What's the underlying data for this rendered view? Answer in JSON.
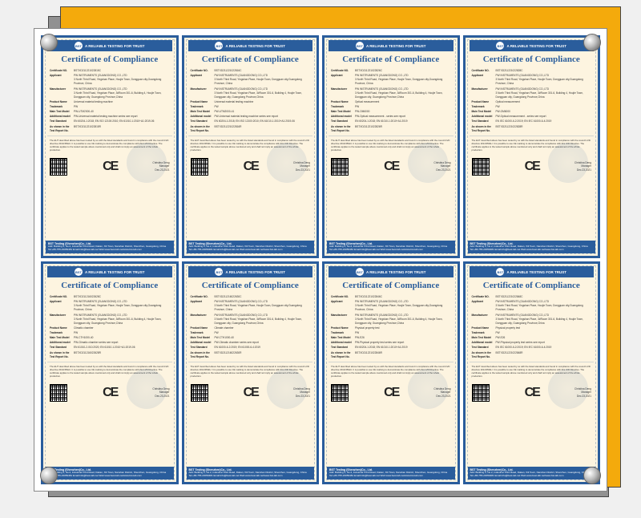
{
  "banner_text": "A RELIABLE TESTING FOR TRUST",
  "bst_label": "BST",
  "title": "Certificate of Compliance",
  "ce_label": "CE",
  "sig_name": "Christina Deng",
  "sig_role": "Manager",
  "sig_date": "Dec.23,2021",
  "disclaimer": "The EUT described above has been tested by us with the listed standards and found in compliance with the council LVD directive 2014/35/EU. It is possible to use CE marking to demonstrate the compliance with this LVD Directive. The certificate applies to the tested sample above mentioned only and shall not imply an assessment of the whole production.",
  "footer_company": "BST Testing (Shenzhen)Co., Ltd.",
  "footer_addr": "Add: Building 2, No.2, Industrial Third Road, Dakan, Xili Town, Nanshan District, Shenzhen, Guangdong, China",
  "footer_contact": "Tel:+86-755-23059481  Email:info@best-lab.net  Web:www.best-lab.net/www.bst-lab.com",
  "labels": {
    "cert_no": "Certificate NO.",
    "applicant": "Applicant",
    "manufacturer": "Manufacturer",
    "product": "Product Name",
    "trademark": "Trademark",
    "model": "Main Test Model",
    "addl": "Additional model",
    "standard": "Test Standard",
    "report": "As shown in the Test Report No."
  },
  "applicant_company": "PW INSTRUMENTS (GUANGDONG) CO.,LTD",
  "applicant_addr": "3 North Third Road, Yingshan Place, Houjie Town, Dongguan city,Guangdong Province, China",
  "manufacturer_addr": "3 North Third Road, Yingshan Place, 3#Room 301-6, Building 4, Houjie Town, Dongguan city, Guangdong Province,China",
  "trademark_val": "PW",
  "certs": [
    {
      "cert_no": "BSTXD211221022815C",
      "product": "Universal material testing machine",
      "model": "PW-UTM2000-40",
      "addl": "PW-Universal material testing machine series see report",
      "standard": "EN 60204-1:2018; EN ISO 12100:2010; EN 61010-1:2010+A1:2019-06",
      "report": "BSTXD211221022815R"
    },
    {
      "cert_no": "BSTXD211221022816C",
      "product": "Universal material testing machine",
      "model": "PW-UTM2000-41",
      "addl": "PW-Universal material testing machine series see report",
      "standard": "EN 60204-1:2018; EN ISO 12100:2010; EN 61010-1:2010+A1:2019-06",
      "report": "BSTXD211221022816R"
    },
    {
      "cert_no": "BSTXD211221022826C",
      "product": "Optical measurement",
      "model": "PW-OM6000",
      "addl": "PW-Optical measurement - series see report",
      "standard": "EN 60204-1:2018; EN 61010-1:2010+A1:2019",
      "report": "BSTXD211221022826R"
    },
    {
      "cert_no": "BSTXD211221022828C",
      "product": "Optical measurement",
      "model": "PW-OM6000",
      "addl": "PW-Optical measurement - series see report",
      "standard": "EN IEC 61000-6-2:2019; EN IEC 61000-6-4:2019",
      "report": "BSTXD211221022828R"
    },
    {
      "cert_no": "BSTXD211216022628C",
      "product": "Climatic chamber",
      "model": "PW-CTH1000-40",
      "addl": "PW-Climatic chamber series see report",
      "standard": "EN 61010-2-010:2020; EN 61010-1:2010+A1:2019-06",
      "report": "BSTXD211216022628R"
    },
    {
      "cert_no": "BSTXD211216022630C",
      "product": "Climate chamber",
      "model": "PW-CTH1000-40",
      "addl": "PW-Climatic chamber series see report",
      "standard": "EN 61000-6-2:2019; EN 61000-6-4:2019",
      "report": "BSTXD211216022630R"
    },
    {
      "cert_no": "BSTXD211221022846C",
      "product": "Physical property test",
      "model": "PW-E26",
      "addl": "PW-Physical property test series see report",
      "standard": "EN 60204-1:2018; EN 61010-1:2010+A1:2019",
      "report": "BSTXD211221022846R"
    },
    {
      "cert_no": "BSTXD211221022848C",
      "product": "Physical property test",
      "model": "PW-E26",
      "addl": "PW-Physical property test series see report",
      "standard": "EN IEC 61000-6-2:2019; EN IEC 61000-6-4:2019",
      "report": "BSTXD211221022848R"
    }
  ]
}
